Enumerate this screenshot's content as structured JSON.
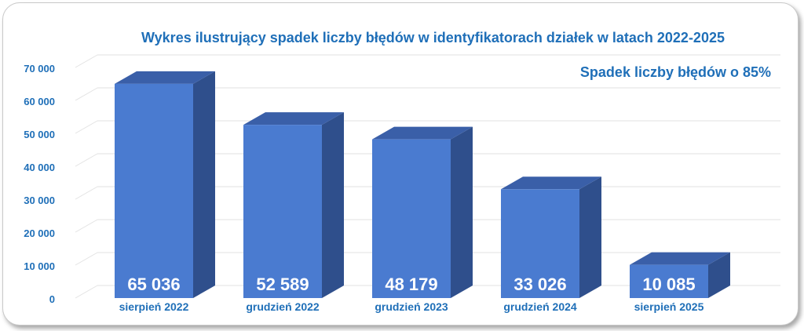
{
  "chart_data": {
    "type": "bar",
    "title": "Wykres ilustrujący spadek liczby błędów w identyfikatorach działek  w latach 2022-2025",
    "subtitle": "Spadek liczby błędów o 85%",
    "categories": [
      "sierpień 2022",
      "grudzień 2022",
      "grudzień 2023",
      "grudzień 2024",
      "sierpień 2025"
    ],
    "values": [
      65036,
      52589,
      48179,
      33026,
      10085
    ],
    "value_labels": [
      "65 036",
      "52 589",
      "48 179",
      "33 026",
      "10 085"
    ],
    "yticks": [
      "0",
      "10 000",
      "20 000",
      "30 000",
      "40 000",
      "50 000",
      "60 000",
      "70 000"
    ],
    "ylim": [
      0,
      70000
    ],
    "xlabel": "",
    "ylabel": "",
    "grid": true,
    "style": "3d-column",
    "colors": {
      "front": "#4a7bd0",
      "top": "#3a5fa8",
      "side": "#2f4f8c",
      "text": "#1f6fb8",
      "value_text": "#ffffff",
      "grid": "#e2e2e2"
    }
  }
}
